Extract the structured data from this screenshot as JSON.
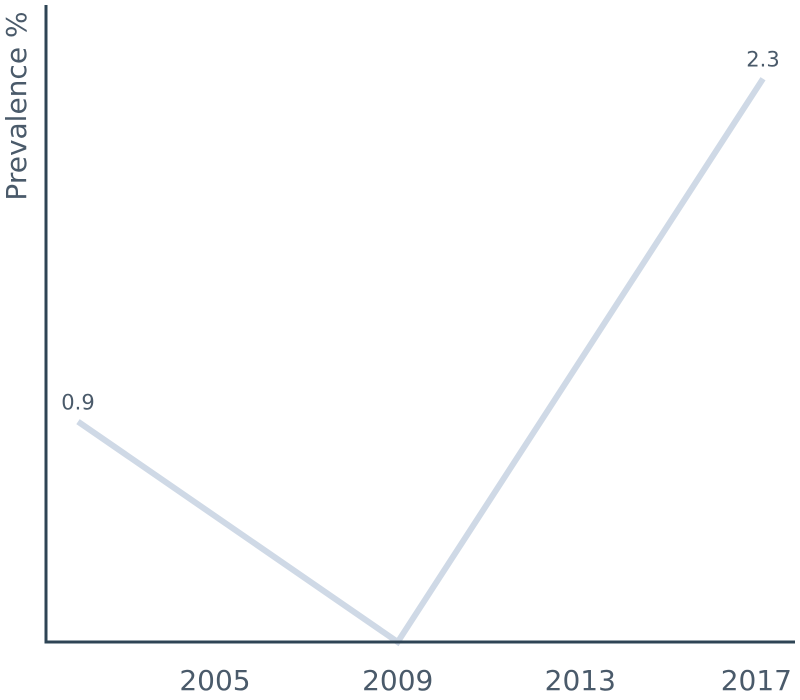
{
  "chart_data": {
    "type": "line",
    "title": "",
    "xlabel": "",
    "ylabel": "Prevalence %",
    "x": [
      2002,
      2009,
      2017
    ],
    "series": [
      {
        "values": [
          0.9,
          0.0,
          2.3
        ],
        "point_labels": [
          "0.9",
          "",
          "2.3"
        ],
        "color": "#cfd9e6"
      }
    ],
    "xticks": [
      "2005",
      "2009",
      "2013",
      "2017"
    ],
    "xlim": [
      2001.3,
      2017.7
    ],
    "ylim": [
      0,
      2.45
    ],
    "grid": false,
    "legend": "none",
    "axis_color": "#2e4455",
    "text_color": "#4a5a6a"
  }
}
